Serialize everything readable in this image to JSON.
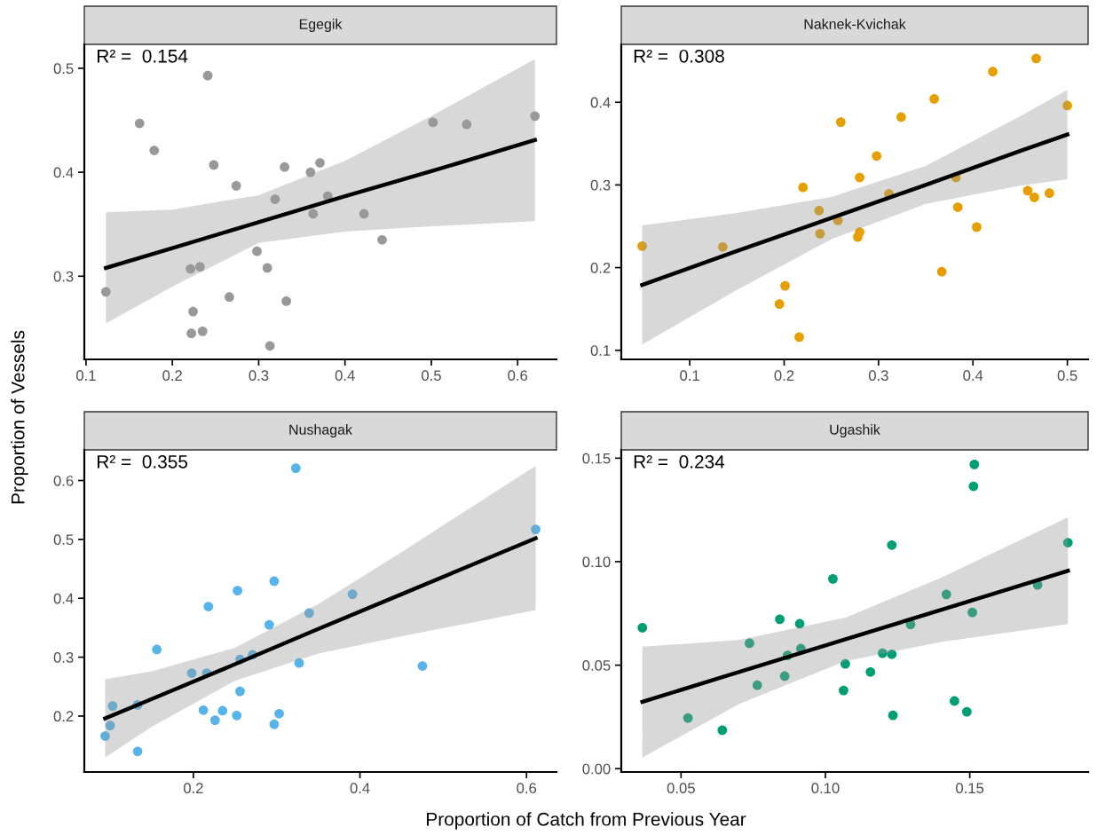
{
  "chart_data": [
    {
      "type": "scatter",
      "title": "Egegik",
      "xlabel": "Proportion of Catch from Previous Year",
      "ylabel": "Proportion of Vessels",
      "annotations": [
        "R² =  0.154"
      ],
      "xlim": [
        0.098,
        0.645
      ],
      "ylim": [
        0.22,
        0.523
      ],
      "xticks": [
        0.1,
        0.2,
        0.3,
        0.4,
        0.5,
        0.6
      ],
      "yticks": [
        0.3,
        0.4,
        0.5
      ],
      "grid": false,
      "series": [
        {
          "marker": "circle",
          "color": "#999999",
          "x": [
            0.123,
            0.162,
            0.179,
            0.241,
            0.248,
            0.274,
            0.221,
            0.232,
            0.224,
            0.222,
            0.235,
            0.266,
            0.298,
            0.31,
            0.313,
            0.332,
            0.319,
            0.33,
            0.36,
            0.371,
            0.363,
            0.38,
            0.422,
            0.443,
            0.502,
            0.541,
            0.62
          ],
          "values": [
            0.285,
            0.447,
            0.421,
            0.493,
            0.407,
            0.387,
            0.307,
            0.309,
            0.266,
            0.245,
            0.247,
            0.28,
            0.324,
            0.308,
            0.233,
            0.276,
            0.374,
            0.405,
            0.4,
            0.409,
            0.36,
            0.377,
            0.36,
            0.335,
            0.448,
            0.446,
            0.454
          ]
        },
        {
          "type": "line",
          "color": "#000000",
          "x": [
            0.123,
            0.2,
            0.3,
            0.4,
            0.5,
            0.62
          ],
          "values": [
            0.308,
            0.327,
            0.352,
            0.377,
            0.401,
            0.431
          ],
          "lower": [
            0.2545,
            0.29,
            0.332,
            0.343,
            0.348,
            0.353
          ],
          "upper": [
            0.3615,
            0.364,
            0.378,
            0.411,
            0.454,
            0.509
          ]
        }
      ]
    },
    {
      "type": "scatter",
      "title": "Naknek-Kvichak",
      "annotations": [
        "R² =  0.308"
      ],
      "xlim": [
        0.0275,
        0.522
      ],
      "ylim": [
        0.089,
        0.47
      ],
      "xticks": [
        0.1,
        0.2,
        0.3,
        0.4,
        0.5
      ],
      "yticks": [
        0.1,
        0.2,
        0.3,
        0.4
      ],
      "grid": false,
      "series": [
        {
          "marker": "circle",
          "color": "#E69F00",
          "x": [
            0.0496,
            0.135,
            0.195,
            0.201,
            0.216,
            0.22,
            0.237,
            0.238,
            0.257,
            0.26,
            0.278,
            0.28,
            0.28,
            0.298,
            0.311,
            0.324,
            0.359,
            0.367,
            0.382,
            0.384,
            0.404,
            0.421,
            0.458,
            0.465,
            0.467,
            0.481,
            0.5
          ],
          "values": [
            0.226,
            0.225,
            0.156,
            0.178,
            0.116,
            0.297,
            0.269,
            0.241,
            0.257,
            0.376,
            0.237,
            0.243,
            0.309,
            0.335,
            0.289,
            0.382,
            0.404,
            0.195,
            0.309,
            0.273,
            0.249,
            0.437,
            0.293,
            0.285,
            0.453,
            0.29,
            0.396
          ]
        },
        {
          "type": "line",
          "color": "#000000",
          "x": [
            0.0496,
            0.15,
            0.25,
            0.35,
            0.45,
            0.5
          ],
          "values": [
            0.179,
            0.22,
            0.26,
            0.3,
            0.341,
            0.361
          ],
          "lower": [
            0.107,
            0.173,
            0.2345,
            0.277,
            0.299,
            0.307
          ],
          "upper": [
            0.251,
            0.266,
            0.2855,
            0.323,
            0.383,
            0.415
          ]
        }
      ]
    },
    {
      "type": "scatter",
      "title": "Nushagak",
      "annotations": [
        "R² =  0.355"
      ],
      "xlim": [
        0.069,
        0.636
      ],
      "ylim": [
        0.105,
        0.652
      ],
      "xticks": [
        0.2,
        0.4,
        0.6
      ],
      "yticks": [
        0.2,
        0.3,
        0.4,
        0.5,
        0.6
      ],
      "grid": false,
      "series": [
        {
          "marker": "circle",
          "color": "#56B4E9",
          "x": [
            0.094,
            0.1,
            0.103,
            0.133,
            0.133,
            0.156,
            0.198,
            0.216,
            0.218,
            0.212,
            0.226,
            0.235,
            0.252,
            0.253,
            0.256,
            0.256,
            0.271,
            0.291,
            0.297,
            0.297,
            0.303,
            0.323,
            0.327,
            0.339,
            0.391,
            0.475,
            0.611
          ],
          "values": [
            0.166,
            0.184,
            0.217,
            0.219,
            0.14,
            0.313,
            0.273,
            0.273,
            0.386,
            0.21,
            0.193,
            0.209,
            0.201,
            0.413,
            0.242,
            0.296,
            0.304,
            0.355,
            0.429,
            0.186,
            0.204,
            0.621,
            0.29,
            0.375,
            0.407,
            0.285,
            0.517
          ]
        },
        {
          "type": "line",
          "color": "#000000",
          "x": [
            0.094,
            0.15,
            0.25,
            0.35,
            0.45,
            0.611
          ],
          "values": [
            0.196,
            0.229,
            0.288,
            0.348,
            0.407,
            0.502
          ],
          "lower": [
            0.1295,
            0.182,
            0.26,
            0.306,
            0.3355,
            0.38
          ],
          "upper": [
            0.2625,
            0.276,
            0.316,
            0.39,
            0.4785,
            0.625
          ]
        }
      ]
    },
    {
      "type": "scatter",
      "title": "Ugashik",
      "annotations": [
        "R² =  0.234"
      ],
      "xlim": [
        0.0293,
        0.191
      ],
      "ylim": [
        -0.0016,
        0.154
      ],
      "xticks": [
        {
          "value": 0.05,
          "label": "0.05"
        },
        {
          "value": 0.1,
          "label": "0.10"
        },
        {
          "value": 0.15,
          "label": "0.15"
        }
      ],
      "yticks": [
        {
          "value": 0,
          "label": "0.00"
        },
        {
          "value": 0.05,
          "label": "0.05"
        },
        {
          "value": 0.1,
          "label": "0.10"
        },
        {
          "value": 0.15,
          "label": "0.15"
        }
      ],
      "grid": false,
      "series": [
        {
          "marker": "circle",
          "color": "#009E73",
          "x": [
            0.0366,
            0.0524,
            0.0643,
            0.0737,
            0.0764,
            0.0842,
            0.0859,
            0.0869,
            0.0911,
            0.0915,
            0.1026,
            0.1063,
            0.1069,
            0.1156,
            0.1198,
            0.123,
            0.123,
            0.1234,
            0.1295,
            0.1419,
            0.1447,
            0.149,
            0.1509,
            0.1513,
            0.1516,
            0.1735,
            0.184
          ],
          "values": [
            0.0681,
            0.0245,
            0.0186,
            0.0606,
            0.0403,
            0.0722,
            0.0447,
            0.0547,
            0.07,
            0.058,
            0.0917,
            0.0378,
            0.0506,
            0.0467,
            0.0558,
            0.0553,
            0.108,
            0.0258,
            0.0697,
            0.0842,
            0.0327,
            0.0275,
            0.0755,
            0.1364,
            0.147,
            0.0888,
            0.1092
          ]
        },
        {
          "type": "line",
          "color": "#000000",
          "x": [
            0.0366,
            0.07,
            0.107,
            0.14,
            0.184
          ],
          "values": [
            0.0323,
            0.0467,
            0.0625,
            0.0767,
            0.0956
          ],
          "lower": [
            0.0054,
            0.0312,
            0.052,
            0.0612,
            0.0699
          ],
          "upper": [
            0.0589,
            0.0622,
            0.073,
            0.0922,
            0.1214
          ]
        }
      ]
    }
  ]
}
